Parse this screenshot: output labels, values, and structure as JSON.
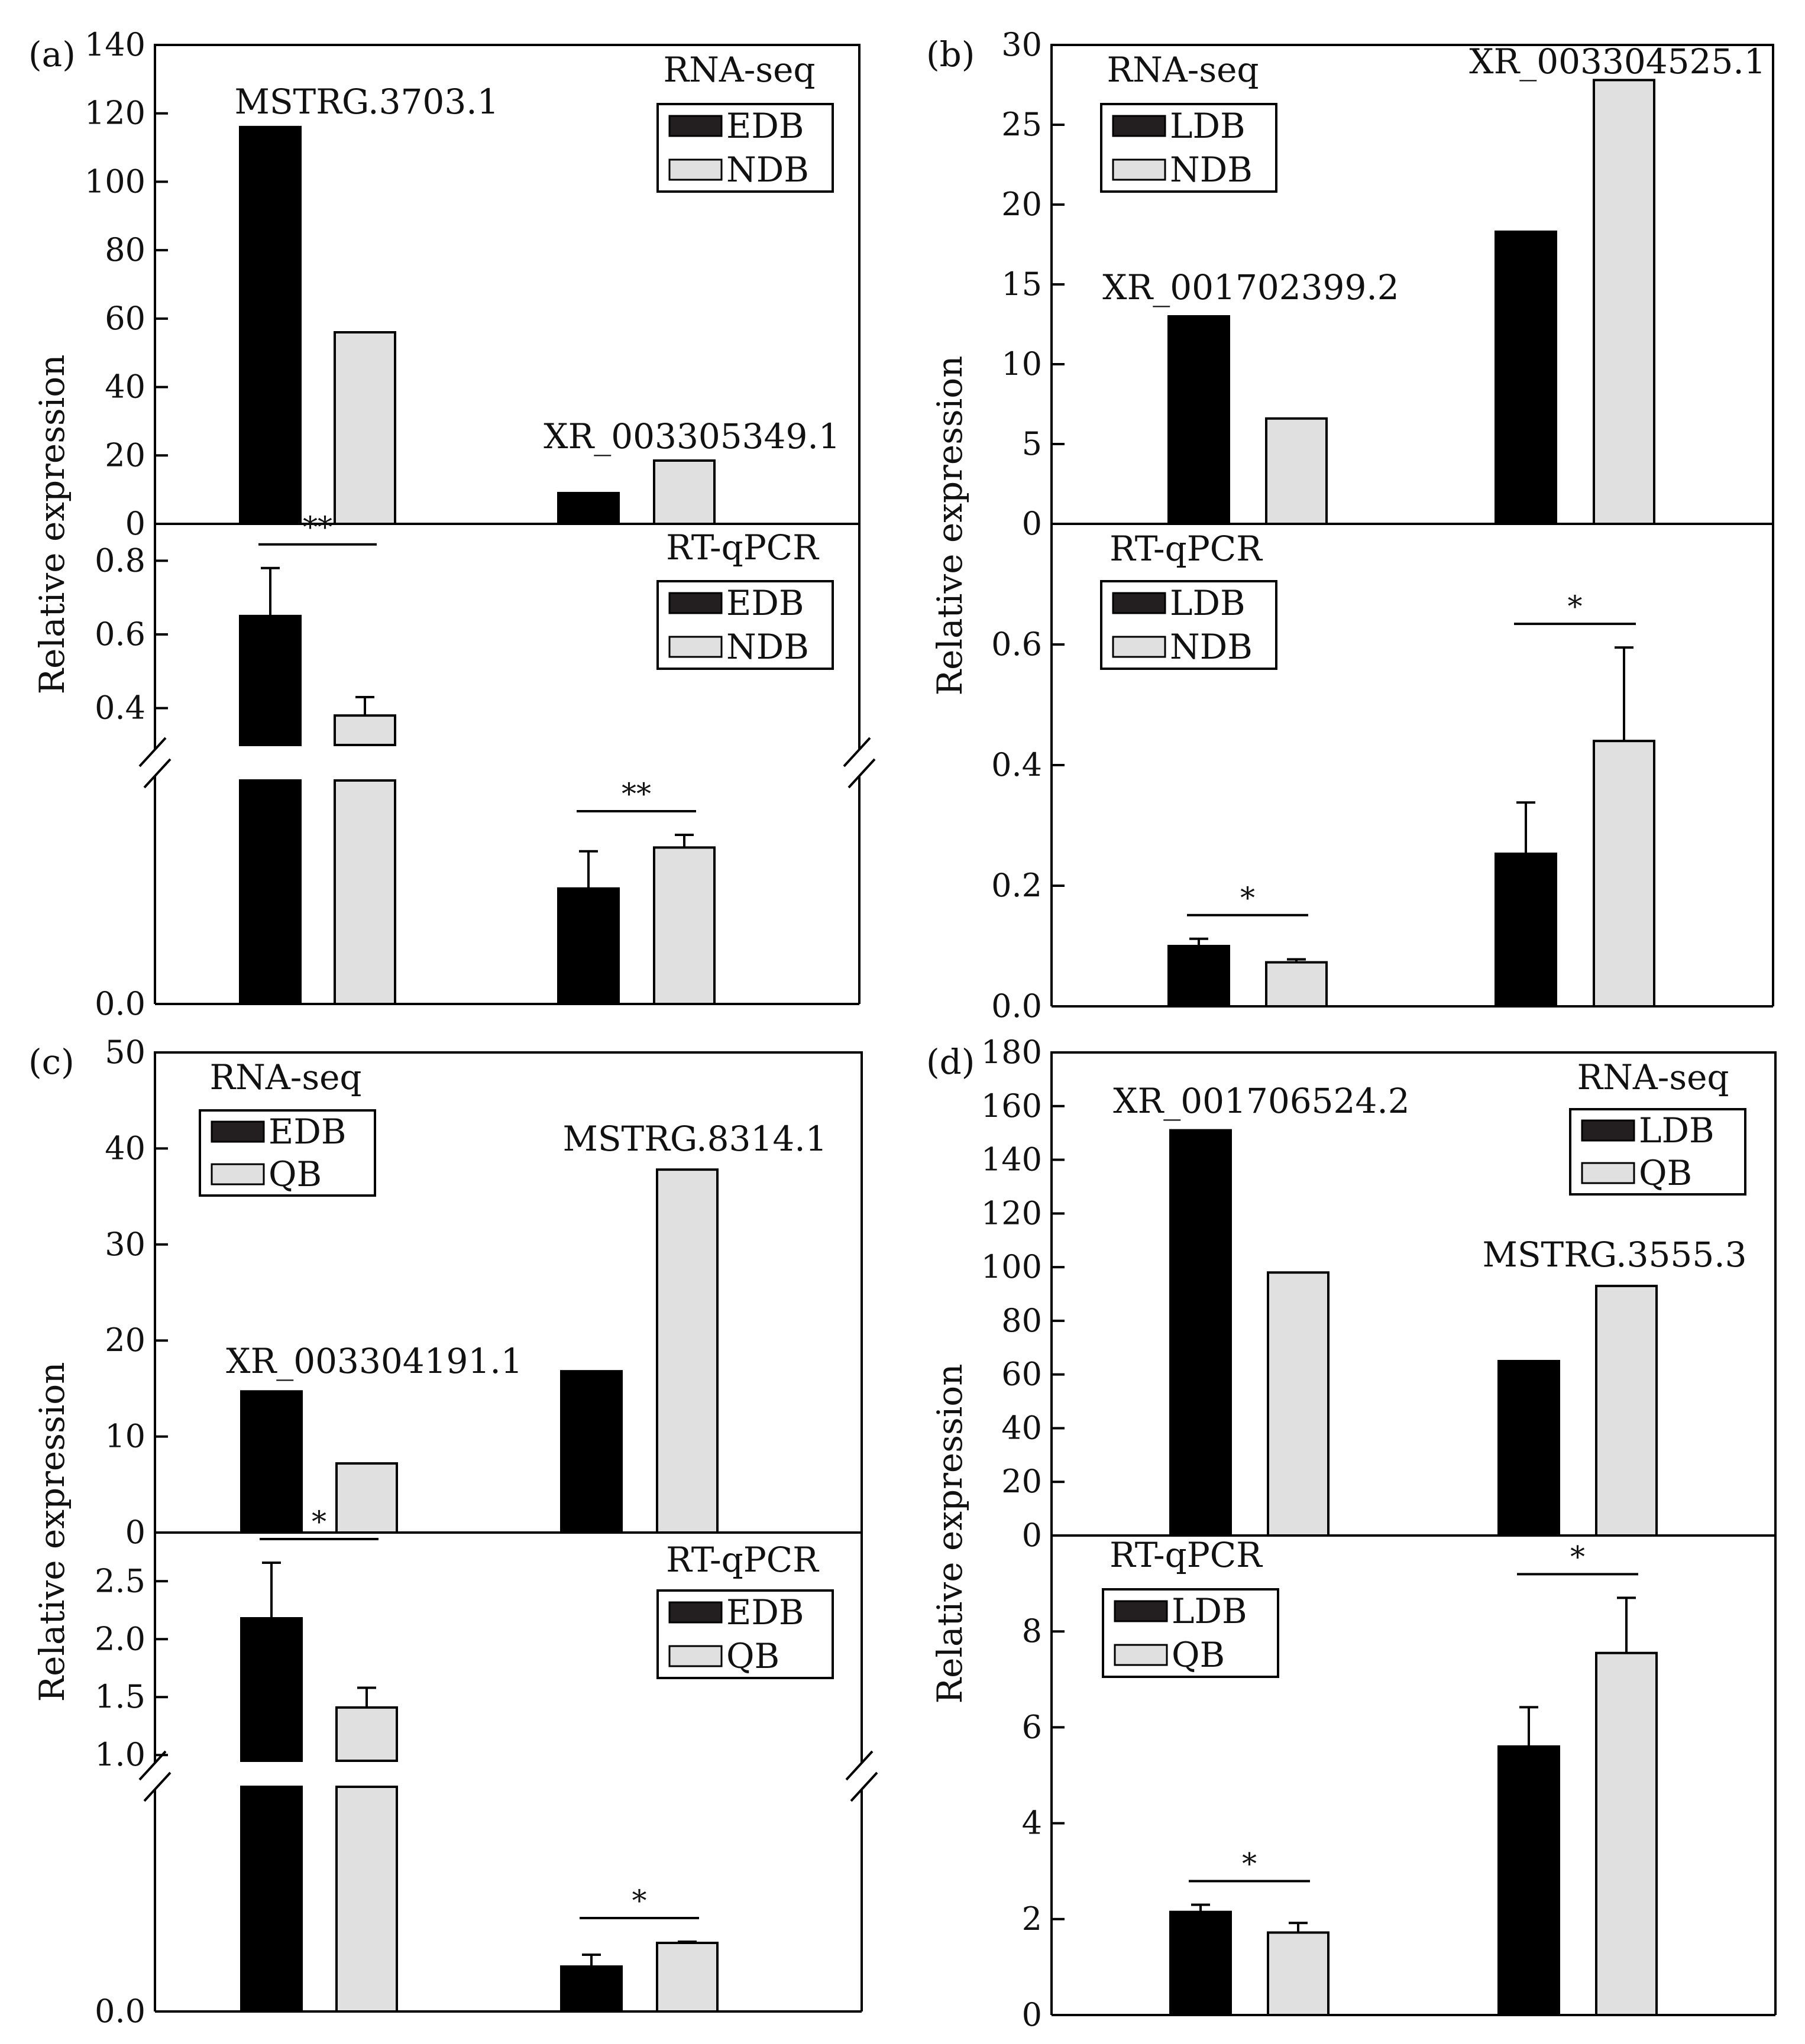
{
  "chart_data": [
    {
      "type": "bar",
      "panel_label": "(a)",
      "ylabel": "Relative expression",
      "colors": {
        "black": "#000000",
        "grey": "#e0e0e0"
      },
      "rna_seq": {
        "method_label": "RNA-seq",
        "legend": [
          "EDB",
          "NDB"
        ],
        "ylim": [
          0,
          140
        ],
        "yticks": [
          0,
          20,
          40,
          60,
          80,
          100,
          120,
          140
        ],
        "groups": [
          {
            "label": "MSTRG.3703.1",
            "values": [
              116,
              56
            ]
          },
          {
            "label": "XR_003305349.1",
            "values": [
              9,
              18.5
            ]
          }
        ]
      },
      "rt_qpcr": {
        "method_label": "RT-qPCR",
        "legend": [
          "EDB",
          "NDB"
        ],
        "axis_break": true,
        "upper_range": [
          0.3,
          0.9
        ],
        "upper_ticks": [
          "0.4",
          "0.6",
          "0.8"
        ],
        "lower_ticks": [
          "0.0"
        ],
        "groups": [
          {
            "values": [
              0.65,
              0.38
            ],
            "errors": [
              0.13,
              0.05
            ],
            "sig": "**"
          },
          {
            "values": [
              0.155,
              0.21
            ],
            "errors": [
              0.05,
              0.017
            ],
            "sig": "**"
          }
        ]
      }
    },
    {
      "type": "bar",
      "panel_label": "(b)",
      "ylabel": "Relative expression",
      "colors": {
        "black": "#000000",
        "grey": "#e0e0e0"
      },
      "rna_seq": {
        "method_label": "RNA-seq",
        "legend": [
          "LDB",
          "NDB"
        ],
        "ylim": [
          0,
          30
        ],
        "yticks": [
          0,
          5,
          10,
          15,
          20,
          25,
          30
        ],
        "groups": [
          {
            "label": "XR_001702399.2",
            "values": [
              13,
              6.6
            ]
          },
          {
            "label": "XR_003304525.1",
            "values": [
              18.3,
              27.8
            ]
          }
        ]
      },
      "rt_qpcr": {
        "method_label": "RT-qPCR",
        "legend": [
          "LDB",
          "NDB"
        ],
        "axis_break": false,
        "ylim": [
          0,
          0.8
        ],
        "yticks": [
          "0.0",
          "0.2",
          "0.4",
          "0.6"
        ],
        "groups": [
          {
            "values": [
              0.1,
              0.073
            ],
            "errors": [
              0.012,
              0.005
            ],
            "sig": "*"
          },
          {
            "values": [
              0.253,
              0.44
            ],
            "errors": [
              0.085,
              0.155
            ],
            "sig": "*"
          }
        ]
      }
    },
    {
      "type": "bar",
      "panel_label": "(c)",
      "ylabel": "Relative expression",
      "colors": {
        "black": "#000000",
        "grey": "#e0e0e0"
      },
      "rna_seq": {
        "method_label": "RNA-seq",
        "legend": [
          "EDB",
          "QB"
        ],
        "ylim": [
          0,
          50
        ],
        "yticks": [
          0,
          10,
          20,
          30,
          40,
          50
        ],
        "groups": [
          {
            "label": "XR_003304191.1",
            "values": [
              14.7,
              7.2
            ]
          },
          {
            "label": "MSTRG.8314.1",
            "values": [
              16.8,
              37.8
            ]
          }
        ]
      },
      "rt_qpcr": {
        "method_label": "RT-qPCR",
        "legend": [
          "EDB",
          "QB"
        ],
        "axis_break": true,
        "upper_range": [
          0.95,
          2.92
        ],
        "upper_ticks": [
          "1.0",
          "1.5",
          "2.0",
          "2.5"
        ],
        "lower_ticks": [
          "0.0"
        ],
        "groups": [
          {
            "values": [
              2.18,
              1.41
            ],
            "errors": [
              0.48,
              0.17
            ],
            "sig": "*"
          },
          {
            "values": [
              0.19,
              0.29
            ],
            "errors": [
              0.05,
              0.005
            ],
            "sig": "*"
          }
        ]
      }
    },
    {
      "type": "bar",
      "panel_label": "(d)",
      "ylabel": "Relative expression",
      "colors": {
        "black": "#000000",
        "grey": "#e0e0e0"
      },
      "rna_seq": {
        "method_label": "RNA-seq",
        "legend": [
          "LDB",
          "QB"
        ],
        "ylim": [
          0,
          180
        ],
        "yticks": [
          0,
          20,
          40,
          60,
          80,
          100,
          120,
          140,
          160,
          180
        ],
        "groups": [
          {
            "label": "XR_001706524.2",
            "values": [
              151,
              98
            ]
          },
          {
            "label": "MSTRG.3555.3",
            "values": [
              65,
              93
            ]
          }
        ]
      },
      "rt_qpcr": {
        "method_label": "RT-qPCR",
        "legend": [
          "LDB",
          "QB"
        ],
        "axis_break": false,
        "ylim": [
          0,
          10
        ],
        "yticks": [
          "0",
          "2",
          "4",
          "6",
          "8"
        ],
        "groups": [
          {
            "values": [
              2.15,
              1.72
            ],
            "errors": [
              0.15,
              0.2
            ],
            "sig": "*"
          },
          {
            "values": [
              5.6,
              7.55
            ],
            "errors": [
              0.82,
              1.15
            ],
            "sig": "*"
          }
        ]
      }
    }
  ]
}
